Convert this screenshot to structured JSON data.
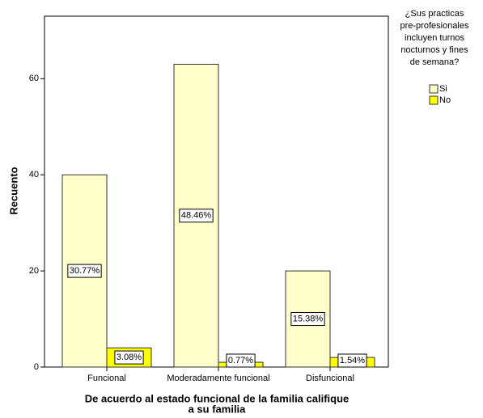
{
  "chart_data": {
    "type": "bar",
    "y_label": "Recuento",
    "x_label_lines": [
      "De acuerdo al estado funcional de la familia  califique",
      "a su familia"
    ],
    "categories": [
      "Funcional",
      "Moderadamente funcional",
      "Disfuncional"
    ],
    "series": [
      {
        "name": "Si",
        "color": "#ffffcc",
        "values": [
          40,
          63,
          20
        ],
        "percent_labels": [
          "30.77%",
          "48.46%",
          "15.38%"
        ]
      },
      {
        "name": "No",
        "color": "#ffff00",
        "values": [
          4,
          1,
          2
        ],
        "percent_labels": [
          "3.08%",
          "0.77%",
          "1.54%"
        ]
      }
    ],
    "legend_title_lines": [
      "¿Sus practicas",
      "pre-profesionales",
      "incluyen turnos",
      "nocturnos y fines",
      "de semana?"
    ],
    "legend": "right",
    "ylim": [
      0,
      73
    ],
    "yticks": [
      0,
      20,
      40,
      60
    ]
  }
}
